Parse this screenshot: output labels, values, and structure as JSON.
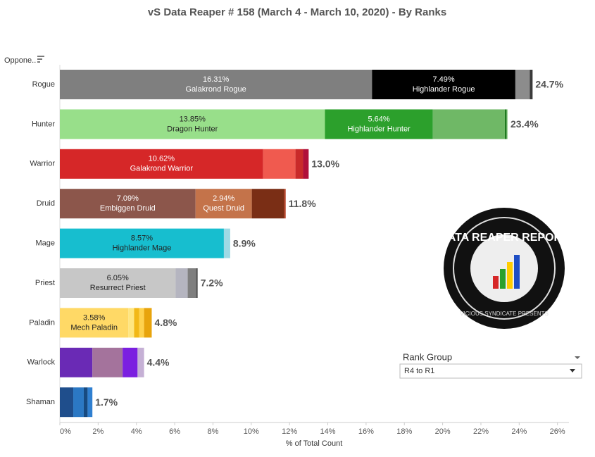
{
  "chart_data": {
    "type": "stacked-hbar",
    "title": "vS Data Reaper #  158 (March 4 - March 10, 2020) - By Ranks",
    "row_header": "Oppone..",
    "x_label": "% of Total Count",
    "xlim": [
      0,
      26.6
    ],
    "xticks": [
      {
        "value": 0,
        "label": "0%"
      },
      {
        "value": 2,
        "label": "2%"
      },
      {
        "value": 4,
        "label": "4%"
      },
      {
        "value": 6,
        "label": "6%"
      },
      {
        "value": 8,
        "label": "8%"
      },
      {
        "value": 10,
        "label": "10%"
      },
      {
        "value": 12,
        "label": "12%"
      },
      {
        "value": 14,
        "label": "14%"
      },
      {
        "value": 16,
        "label": "16%"
      },
      {
        "value": 18,
        "label": "18%"
      },
      {
        "value": 20,
        "label": "20%"
      },
      {
        "value": 22,
        "label": "22%"
      },
      {
        "value": 24,
        "label": "24%"
      },
      {
        "value": 26,
        "label": "26%"
      }
    ],
    "rows": [
      {
        "category": "Rogue",
        "total": 24.7,
        "total_label": "24.7%",
        "segments": [
          {
            "value": 16.31,
            "value_label": "16.31%",
            "name": "Galakrond Rogue",
            "color": "#7f7f7f",
            "label_color": "#fff"
          },
          {
            "value": 7.49,
            "value_label": "7.49%",
            "name": "Highlander Rogue",
            "color": "#000000",
            "label_color": "#fff"
          },
          {
            "value": 0.75,
            "color": "#8c8c8c"
          },
          {
            "value": 0.15,
            "color": "#3a3a3a"
          }
        ]
      },
      {
        "category": "Hunter",
        "total": 23.4,
        "total_label": "23.4%",
        "segments": [
          {
            "value": 13.85,
            "value_label": "13.85%",
            "name": "Dragon Hunter",
            "color": "#98df8a",
            "label_color": "#222"
          },
          {
            "value": 5.64,
            "value_label": "5.64%",
            "name": "Highlander Hunter",
            "color": "#2ca02c",
            "label_color": "#fff"
          },
          {
            "value": 3.76,
            "color": "#6fb866"
          },
          {
            "value": 0.1,
            "color": "#1e7a1e"
          },
          {
            "value": 0.05,
            "color": "#9fd397"
          }
        ]
      },
      {
        "category": "Warrior",
        "total": 13.0,
        "total_label": "13.0%",
        "segments": [
          {
            "value": 10.62,
            "value_label": "10.62%",
            "name": "Galakrond Warrior",
            "color": "#d62728",
            "label_color": "#fff"
          },
          {
            "value": 1.69,
            "color": "#f05a4f"
          },
          {
            "value": 0.4,
            "color": "#c92a2a"
          },
          {
            "value": 0.29,
            "color": "#b0103a"
          }
        ]
      },
      {
        "category": "Druid",
        "total": 11.8,
        "total_label": "11.8%",
        "segments": [
          {
            "value": 7.09,
            "value_label": "7.09%",
            "name": "Embiggen Druid",
            "color": "#8c564b",
            "label_color": "#fff"
          },
          {
            "value": 2.94,
            "value_label": "2.94%",
            "name": "Quest Druid",
            "color": "#c4734a",
            "label_color": "#fff"
          },
          {
            "value": 1.69,
            "color": "#7a2e15"
          },
          {
            "value": 0.08,
            "color": "#b8452a"
          }
        ]
      },
      {
        "category": "Mage",
        "total": 8.9,
        "total_label": "8.9%",
        "segments": [
          {
            "value": 8.57,
            "value_label": "8.57%",
            "name": "Highlander Mage",
            "color": "#17becf",
            "label_color": "#222"
          },
          {
            "value": 0.33,
            "color": "#9edae5"
          }
        ]
      },
      {
        "category": "Priest",
        "total": 7.2,
        "total_label": "7.2%",
        "segments": [
          {
            "value": 6.05,
            "value_label": "6.05%",
            "name": "Resurrect Priest",
            "color": "#c7c7c7",
            "label_color": "#222"
          },
          {
            "value": 0.63,
            "color": "#b5b5c0"
          },
          {
            "value": 0.44,
            "color": "#7f7f7f"
          },
          {
            "value": 0.08,
            "color": "#555"
          }
        ]
      },
      {
        "category": "Paladin",
        "total": 4.8,
        "total_label": "4.8%",
        "segments": [
          {
            "value": 3.58,
            "value_label": "3.58%",
            "name": "Mech Paladin",
            "color": "#ffd966",
            "label_color": "#222"
          },
          {
            "value": 0.3,
            "color": "#ffe680"
          },
          {
            "value": 0.26,
            "color": "#f2b817"
          },
          {
            "value": 0.26,
            "color": "#ffd24d"
          },
          {
            "value": 0.4,
            "color": "#e8a40c"
          }
        ]
      },
      {
        "category": "Warlock",
        "total": 4.4,
        "total_label": "4.4%",
        "segments": [
          {
            "value": 1.7,
            "color": "#6a2ab5"
          },
          {
            "value": 1.58,
            "color": "#a4739c"
          },
          {
            "value": 0.78,
            "color": "#7b1fe0"
          },
          {
            "value": 0.34,
            "color": "#c5b0d5"
          }
        ]
      },
      {
        "category": "Shaman",
        "total": 1.7,
        "total_label": "1.7%",
        "segments": [
          {
            "value": 0.7,
            "color": "#1f4e8c"
          },
          {
            "value": 0.55,
            "color": "#2b78c4"
          },
          {
            "value": 0.2,
            "color": "#174a80"
          },
          {
            "value": 0.25,
            "color": "#2f7fd0"
          }
        ]
      }
    ],
    "filter": {
      "label": "Rank Group",
      "selected": "R4 to R1"
    },
    "logo": {
      "title": "DATA REAPER REPORT",
      "subtitle": "VICIOUS SYNDICATE PRESENTS"
    }
  }
}
